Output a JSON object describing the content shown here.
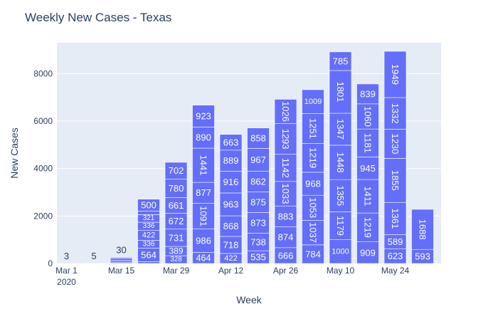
{
  "chart_data": {
    "type": "bar",
    "title": "Weekly New Cases - Texas",
    "xlabel": "Week",
    "ylabel": "New Cases",
    "ylim": [
      0,
      9300
    ],
    "y_ticks": [
      0,
      2000,
      4000,
      6000,
      8000
    ],
    "y_tick_labels": [
      "0",
      "2000",
      "4000",
      "6000",
      "8000"
    ],
    "x_ticks": [
      {
        "week": 0,
        "label": "Mar 1",
        "sublabel": "2020"
      },
      {
        "week": 2,
        "label": "Mar 15"
      },
      {
        "week": 4,
        "label": "Mar 29"
      },
      {
        "week": 6,
        "label": "Apr 12"
      },
      {
        "week": 8,
        "label": "Apr 26"
      },
      {
        "week": 10,
        "label": "May 10"
      },
      {
        "week": 12,
        "label": "May 24"
      }
    ],
    "grid": true,
    "bar_color": "#636efa",
    "plot_bg": "#e5ecf6",
    "weeks": [
      {
        "week": 0,
        "segments": [
          {
            "v": 3,
            "label": "3"
          }
        ]
      },
      {
        "week": 1,
        "segments": [
          {
            "v": 5,
            "label": "5"
          }
        ]
      },
      {
        "week": 2,
        "segments": [
          {
            "v": 10,
            "label": ""
          },
          {
            "v": 50,
            "label": ""
          },
          {
            "v": 80,
            "label": ""
          },
          {
            "v": 90,
            "label": ""
          },
          {
            "v": 30,
            "label": "30"
          }
        ]
      },
      {
        "week": 3,
        "segments": [
          {
            "v": 80,
            "label": ""
          },
          {
            "v": 564,
            "label": "564"
          },
          {
            "v": 336,
            "label": "336"
          },
          {
            "v": 422,
            "label": "422"
          },
          {
            "v": 336,
            "label": "336"
          },
          {
            "v": 321,
            "label": "321"
          },
          {
            "v": 150,
            "label": ""
          },
          {
            "v": 500,
            "label": "500"
          }
        ]
      },
      {
        "week": 4,
        "segments": [
          {
            "v": 328,
            "label": "328"
          },
          {
            "v": 389,
            "label": "389"
          },
          {
            "v": 731,
            "label": "731"
          },
          {
            "v": 672,
            "label": "672"
          },
          {
            "v": 661,
            "label": "661"
          },
          {
            "v": 780,
            "label": "780"
          },
          {
            "v": 702,
            "label": "702"
          }
        ]
      },
      {
        "week": 5,
        "segments": [
          {
            "v": 464,
            "label": "464"
          },
          {
            "v": 986,
            "label": "986"
          },
          {
            "v": 1091,
            "label": "1091"
          },
          {
            "v": 877,
            "label": "877"
          },
          {
            "v": 1441,
            "label": "1441"
          },
          {
            "v": 890,
            "label": "890"
          },
          {
            "v": 923,
            "label": "923"
          }
        ]
      },
      {
        "week": 6,
        "segments": [
          {
            "v": 422,
            "label": "422"
          },
          {
            "v": 718,
            "label": "718"
          },
          {
            "v": 868,
            "label": "868"
          },
          {
            "v": 963,
            "label": "963"
          },
          {
            "v": 916,
            "label": "916"
          },
          {
            "v": 889,
            "label": "889"
          },
          {
            "v": 663,
            "label": "663"
          }
        ]
      },
      {
        "week": 7,
        "segments": [
          {
            "v": 535,
            "label": "535"
          },
          {
            "v": 738,
            "label": "738"
          },
          {
            "v": 873,
            "label": "873"
          },
          {
            "v": 875,
            "label": "875"
          },
          {
            "v": 862,
            "label": "862"
          },
          {
            "v": 967,
            "label": "967"
          },
          {
            "v": 858,
            "label": "858"
          }
        ]
      },
      {
        "week": 8,
        "segments": [
          {
            "v": 666,
            "label": "666"
          },
          {
            "v": 874,
            "label": "874"
          },
          {
            "v": 883,
            "label": "883"
          },
          {
            "v": 1033,
            "label": "1033"
          },
          {
            "v": 1142,
            "label": "1142"
          },
          {
            "v": 1293,
            "label": "1293"
          },
          {
            "v": 1026,
            "label": "1026"
          }
        ]
      },
      {
        "week": 9,
        "segments": [
          {
            "v": 784,
            "label": "784"
          },
          {
            "v": 1037,
            "label": "1037"
          },
          {
            "v": 1053,
            "label": "1053"
          },
          {
            "v": 968,
            "label": "968"
          },
          {
            "v": 1219,
            "label": "1219"
          },
          {
            "v": 1251,
            "label": "1251"
          },
          {
            "v": 1009,
            "label": "1009"
          }
        ]
      },
      {
        "week": 10,
        "segments": [
          {
            "v": 1000,
            "label": "1000"
          },
          {
            "v": 1179,
            "label": "1179"
          },
          {
            "v": 1355,
            "label": "1355"
          },
          {
            "v": 1448,
            "label": "1448"
          },
          {
            "v": 1347,
            "label": "1347"
          },
          {
            "v": 1801,
            "label": "1801"
          },
          {
            "v": 785,
            "label": "785"
          }
        ]
      },
      {
        "week": 11,
        "segments": [
          {
            "v": 909,
            "label": "909"
          },
          {
            "v": 1219,
            "label": "1219"
          },
          {
            "v": 1411,
            "label": "1411"
          },
          {
            "v": 945,
            "label": "945"
          },
          {
            "v": 1181,
            "label": "1181"
          },
          {
            "v": 1060,
            "label": "1060"
          },
          {
            "v": 839,
            "label": "839"
          }
        ]
      },
      {
        "week": 12,
        "segments": [
          {
            "v": 623,
            "label": "623"
          },
          {
            "v": 589,
            "label": "589"
          },
          {
            "v": 1361,
            "label": "1361"
          },
          {
            "v": 1855,
            "label": "1855"
          },
          {
            "v": 1230,
            "label": "1230"
          },
          {
            "v": 1332,
            "label": "1332"
          },
          {
            "v": 1949,
            "label": "1949"
          }
        ]
      },
      {
        "week": 13,
        "segments": [
          {
            "v": 593,
            "label": "593"
          },
          {
            "v": 1688,
            "label": "1688"
          }
        ]
      }
    ]
  }
}
